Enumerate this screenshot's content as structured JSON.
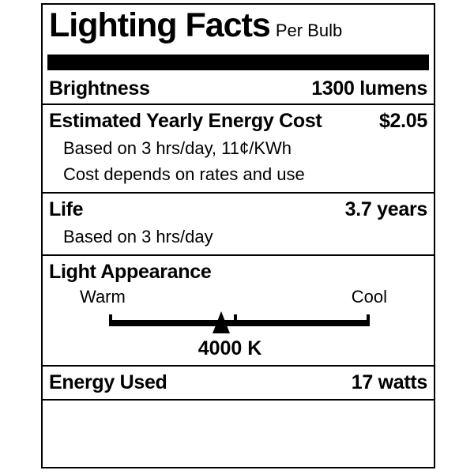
{
  "label": {
    "title": "Lighting Facts",
    "subtitle": "Per Bulb",
    "brightness": {
      "label": "Brightness",
      "value": "1300 lumens"
    },
    "energy_cost": {
      "label": "Estimated Yearly Energy Cost",
      "value": "$2.05",
      "note1": "Based on 3 hrs/day, 11¢/KWh",
      "note2": "Cost depends on rates and use"
    },
    "life": {
      "label": "Life",
      "value": "3.7 years",
      "note1": "Based on 3 hrs/day"
    },
    "light_appearance": {
      "label": "Light Appearance",
      "warm_label": "Warm",
      "cool_label": "Cool",
      "marker_value": "4000 K",
      "marker_position_pct": 43,
      "tick_position_pct": 48.5
    },
    "energy_used": {
      "label": "Energy Used",
      "value": "17 watts"
    },
    "colors": {
      "ink": "#000000",
      "background": "#ffffff"
    }
  }
}
